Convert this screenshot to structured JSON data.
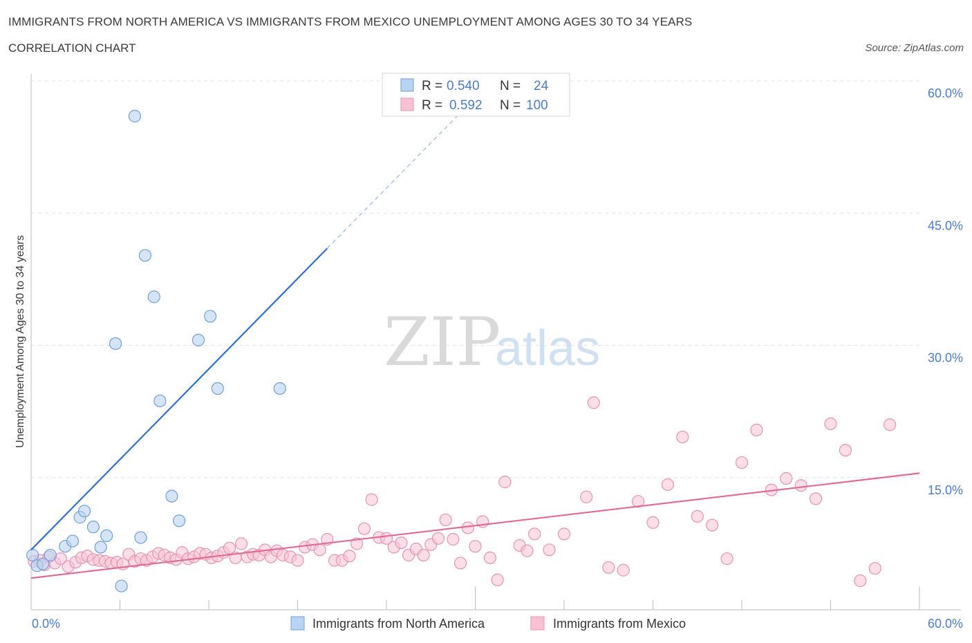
{
  "header": {
    "title": "IMMIGRANTS FROM NORTH AMERICA VS IMMIGRANTS FROM MEXICO UNEMPLOYMENT AMONG AGES 30 TO 34 YEARS",
    "subtitle": "CORRELATION CHART",
    "source": "Source: ZipAtlas.com"
  },
  "watermark": {
    "zip": "ZIP",
    "atlas": "atlas"
  },
  "colors": {
    "blue_fill": "#b9d3f2",
    "blue_stroke": "#6f9fd8",
    "blue_line": "#2f6fcf",
    "pink_fill": "#f7c3d4",
    "pink_stroke": "#e793b0",
    "pink_line": "#e06a96",
    "axis_label": "#4a7cc7"
  },
  "legend_top": {
    "rows": [
      {
        "r_label": "R = ",
        "r_value": "0.540",
        "n_label": "N = ",
        "n_value": "24"
      },
      {
        "r_label": "R = ",
        "r_value": "0.592",
        "n_label": "N = ",
        "n_value": "100"
      }
    ]
  },
  "legend_bottom": {
    "items": [
      "Immigrants from North America",
      "Immigrants from Mexico"
    ]
  },
  "chart_data": {
    "type": "scatter",
    "title": "IMMIGRANTS FROM NORTH AMERICA VS IMMIGRANTS FROM MEXICO UNEMPLOYMENT AMONG AGES 30 TO 34 YEARS",
    "subtitle": "CORRELATION CHART",
    "ylabel": "Unemployment Among Ages 30 to 34 years",
    "xlim": [
      0,
      60
    ],
    "ylim": [
      0,
      60
    ],
    "x_tick_labels": [
      "0.0%",
      "60.0%"
    ],
    "y_tick_labels": [
      {
        "value": 15,
        "label": "15.0%"
      },
      {
        "value": 30,
        "label": "30.0%"
      },
      {
        "value": 45,
        "label": "45.0%"
      },
      {
        "value": 60,
        "label": "60.0%"
      }
    ],
    "grid": true,
    "legend_position": "top-center",
    "series": [
      {
        "name": "Immigrants from North America",
        "R": 0.54,
        "N": 24,
        "trend": {
          "x0": 0,
          "y0": 6.8,
          "x1": 20,
          "y1": 41.0,
          "dashed_to_x": 29.5
        },
        "x": [
          0.1,
          0.4,
          0.8,
          1.3,
          2.3,
          2.8,
          3.3,
          3.6,
          4.2,
          4.7,
          5.1,
          5.7,
          6.1,
          7.0,
          7.4,
          7.7,
          8.3,
          8.7,
          9.5,
          10.0,
          11.3,
          12.1,
          12.6,
          16.8
        ],
        "y": [
          6.2,
          5.0,
          5.2,
          6.2,
          7.2,
          7.8,
          10.5,
          11.2,
          9.4,
          7.1,
          8.4,
          30.2,
          2.7,
          56.0,
          8.2,
          40.2,
          35.5,
          23.7,
          12.9,
          10.1,
          30.6,
          33.3,
          25.1,
          25.1
        ]
      },
      {
        "name": "Immigrants from Mexico",
        "R": 0.592,
        "N": 100,
        "trend": {
          "x0": 0,
          "y0": 3.6,
          "x1": 60,
          "y1": 15.5
        },
        "x": [
          0.2,
          0.6,
          0.9,
          1.2,
          1.6,
          2.0,
          2.5,
          3.0,
          3.4,
          3.8,
          4.2,
          4.6,
          5.0,
          5.4,
          5.8,
          6.2,
          6.6,
          7.0,
          7.4,
          7.8,
          8.2,
          8.6,
          9.0,
          9.4,
          9.8,
          10.2,
          10.6,
          11.0,
          11.4,
          11.8,
          12.2,
          12.6,
          13.0,
          13.4,
          13.8,
          14.2,
          14.6,
          15.0,
          15.4,
          15.8,
          16.2,
          16.6,
          17.0,
          17.5,
          18.0,
          18.5,
          19.0,
          19.5,
          20.0,
          20.5,
          21.0,
          21.5,
          22.0,
          22.5,
          23.0,
          23.5,
          24.0,
          24.5,
          25.0,
          25.5,
          26.0,
          26.5,
          27.0,
          27.5,
          28.0,
          28.5,
          29.0,
          29.5,
          30.0,
          30.5,
          31.0,
          31.5,
          32.0,
          33.0,
          33.5,
          34.0,
          35.0,
          36.0,
          37.5,
          38.0,
          39.0,
          40.0,
          41.0,
          42.0,
          43.0,
          44.0,
          45.0,
          46.0,
          47.0,
          48.0,
          49.0,
          50.0,
          51.0,
          52.0,
          53.0,
          54.0,
          55.0,
          56.0,
          57.0,
          58.0
        ],
        "y": [
          5.5,
          5.6,
          5.1,
          6.0,
          5.3,
          5.8,
          4.9,
          5.4,
          5.9,
          6.1,
          5.7,
          5.6,
          5.5,
          5.3,
          5.4,
          5.2,
          6.3,
          5.5,
          5.8,
          5.6,
          6.0,
          6.4,
          6.2,
          5.9,
          5.7,
          6.5,
          5.8,
          6.0,
          6.4,
          6.3,
          5.9,
          6.1,
          6.5,
          7.0,
          5.9,
          7.5,
          6.0,
          6.3,
          6.2,
          6.8,
          6.0,
          6.7,
          6.2,
          6.0,
          5.6,
          7.1,
          7.4,
          6.8,
          8.0,
          5.6,
          5.6,
          6.1,
          7.5,
          9.2,
          12.5,
          8.2,
          8.1,
          7.1,
          7.6,
          6.2,
          6.9,
          6.2,
          7.4,
          8.1,
          10.2,
          8.0,
          5.3,
          9.3,
          7.2,
          10.0,
          5.9,
          3.4,
          14.5,
          7.3,
          6.7,
          8.6,
          6.8,
          8.6,
          12.8,
          23.5,
          4.8,
          4.5,
          12.3,
          9.9,
          14.2,
          19.6,
          10.6,
          9.6,
          5.8,
          16.7,
          20.4,
          13.6,
          14.9,
          14.1,
          12.6,
          21.1,
          18.1,
          3.3,
          4.7,
          21.0
        ]
      }
    ]
  }
}
